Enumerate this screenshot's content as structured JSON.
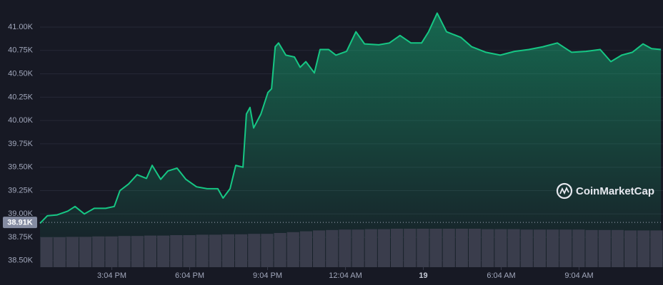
{
  "chart_data": {
    "type": "area",
    "color": "#16c784",
    "x": [
      12.3,
      12.58,
      12.96,
      13.37,
      13.65,
      14.01,
      14.39,
      14.83,
      15.16,
      15.38,
      15.71,
      16.04,
      16.4,
      16.62,
      16.95,
      17.23,
      17.58,
      17.92,
      18.33,
      18.74,
      19.15,
      19.35,
      19.62,
      19.84,
      20.12,
      20.25,
      20.39,
      20.53,
      20.81,
      21.08,
      21.22,
      21.36,
      21.49,
      21.77,
      22.1,
      22.32,
      22.54,
      22.87,
      23.09,
      23.42,
      23.7,
      24.11,
      24.47,
      24.8,
      25.35,
      25.76,
      26.17,
      26.59,
      27.0,
      27.27,
      27.6,
      27.96,
      28.51,
      28.93,
      29.48,
      30.03,
      30.58,
      31.13,
      31.68,
      32.23,
      32.78,
      33.33,
      33.88,
      34.29,
      34.71,
      35.12,
      35.53,
      35.86,
      36.22
    ],
    "values": [
      38.9,
      38.98,
      38.99,
      39.03,
      39.08,
      39.0,
      39.06,
      39.06,
      39.08,
      39.25,
      39.32,
      39.42,
      39.38,
      39.52,
      39.37,
      39.46,
      39.49,
      39.37,
      39.29,
      39.27,
      39.27,
      39.17,
      39.27,
      39.52,
      39.5,
      40.07,
      40.14,
      39.92,
      40.07,
      40.3,
      40.34,
      40.79,
      40.83,
      40.7,
      40.68,
      40.57,
      40.63,
      40.51,
      40.76,
      40.76,
      40.7,
      40.74,
      40.95,
      40.82,
      40.81,
      40.83,
      40.91,
      40.83,
      40.83,
      40.95,
      41.15,
      40.95,
      40.89,
      40.79,
      40.73,
      40.7,
      40.74,
      40.76,
      40.79,
      40.83,
      40.73,
      40.74,
      40.76,
      40.63,
      40.7,
      40.73,
      40.82,
      40.77,
      40.76
    ],
    "xlim": [
      12.3,
      36.3
    ],
    "ylim": [
      38.43,
      41.29
    ],
    "yticks": [
      {
        "value": 38.5,
        "label": "38.50K"
      },
      {
        "value": 38.75,
        "label": "38.75K"
      },
      {
        "value": 39.0,
        "label": "39.00K"
      },
      {
        "value": 39.25,
        "label": "39.25K"
      },
      {
        "value": 39.5,
        "label": "39.50K"
      },
      {
        "value": 39.75,
        "label": "39.75K"
      },
      {
        "value": 40.0,
        "label": "40.00K"
      },
      {
        "value": 40.25,
        "label": "40.25K"
      },
      {
        "value": 40.5,
        "label": "40.50K"
      },
      {
        "value": 40.75,
        "label": "40.75K"
      },
      {
        "value": 41.0,
        "label": "41.00K"
      }
    ],
    "xticks": [
      {
        "value": 15.067,
        "label": "3:04 PM"
      },
      {
        "value": 18.067,
        "label": "6:04 PM"
      },
      {
        "value": 21.067,
        "label": "9:04 PM"
      },
      {
        "value": 24.067,
        "label": "12:04 AM"
      },
      {
        "value": 27.067,
        "label": "19"
      },
      {
        "value": 30.067,
        "label": "6:04 AM"
      },
      {
        "value": 33.067,
        "label": "9:04 AM"
      }
    ],
    "grid": true,
    "current_price": {
      "value": 38.91,
      "label": "38.91K"
    },
    "volume": {
      "color": "#3a3d4c",
      "ylim": [
        0,
        100
      ],
      "values": [
        70,
        70,
        71,
        71,
        72,
        72,
        73,
        73,
        74,
        74,
        75,
        75,
        76,
        76,
        77,
        77,
        78,
        78,
        80,
        82,
        84,
        86,
        87,
        88,
        88,
        89,
        89,
        90,
        90,
        90,
        90,
        90,
        90,
        90,
        89,
        89,
        89,
        88,
        88,
        88,
        88,
        88,
        87,
        87,
        87,
        86,
        86,
        86
      ]
    },
    "watermark": "CoinMarketCap"
  }
}
